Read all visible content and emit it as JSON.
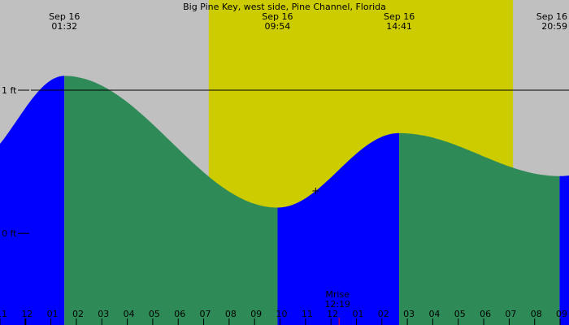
{
  "chart_data": {
    "type": "area",
    "title": "Big Pine Key, west side, Pine Channel, Florida",
    "y_unit": "ft",
    "y_ticks": [
      {
        "value": 1,
        "label": "1 ft"
      },
      {
        "value": 0,
        "label": "0 ft"
      }
    ],
    "ylim": [
      -0.64,
      1.63
    ],
    "x_hour_ticks": [
      "11",
      "12",
      "01",
      "02",
      "03",
      "04",
      "05",
      "06",
      "07",
      "08",
      "09",
      "10",
      "11",
      "12",
      "01",
      "02",
      "03",
      "04",
      "05",
      "06",
      "07",
      "08",
      "09"
    ],
    "x_hour_range": [
      23.0,
      45.35
    ],
    "daylight": {
      "start_hour": 31.2,
      "end_hour": 43.15
    },
    "extremes": [
      {
        "kind": "high",
        "hour": 25.53,
        "height": 1.1,
        "date": "Sep 16",
        "time": "01:32"
      },
      {
        "kind": "low",
        "hour": 33.9,
        "height": 0.18,
        "date": "Sep 16",
        "time": "09:54"
      },
      {
        "kind": "high",
        "hour": 38.68,
        "height": 0.7,
        "date": "Sep 16",
        "time": "14:41"
      },
      {
        "kind": "low",
        "hour": 44.98,
        "height": 0.4,
        "date": "Sep 16",
        "time": "20:59"
      }
    ],
    "start": {
      "hour": 23.0,
      "height": 0.73
    },
    "current_hour": 35.4,
    "moonrise": {
      "label": "Mrise",
      "time": "12:19",
      "hour": 36.32
    },
    "colors": {
      "background": "#c0c0c0",
      "daylight": "#cccc00",
      "rising": "#0000ff",
      "falling": "#2e8b57",
      "line": "#000000",
      "moon_marker": "#ff0000"
    }
  }
}
